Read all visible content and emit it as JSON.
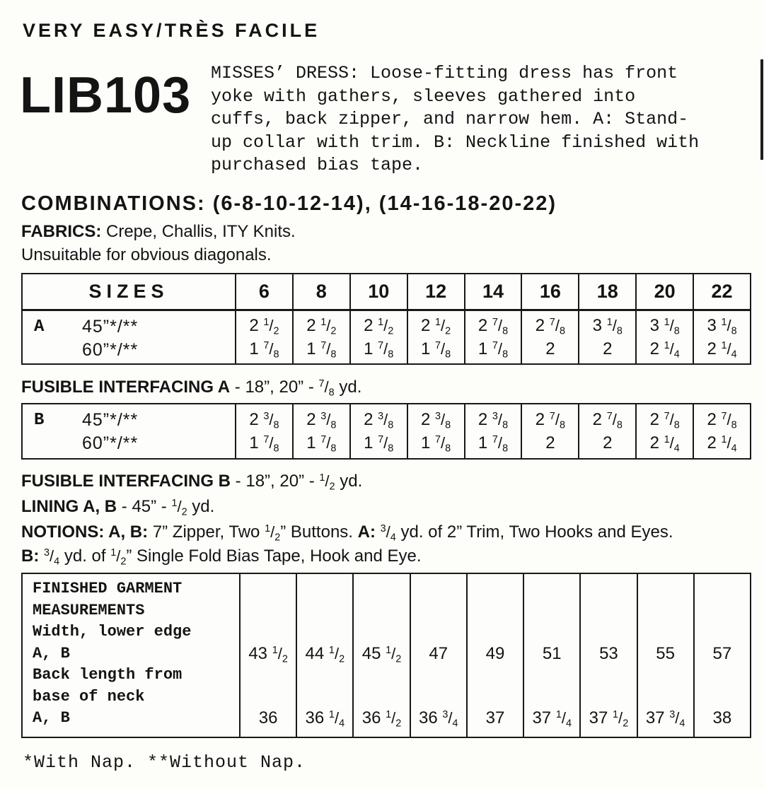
{
  "header": {
    "difficulty": "VERY EASY/TRÈS FACILE",
    "pattern_number": "LIB103",
    "description": "MISSES’ DRESS: Loose-fitting dress has front\nyoke with gathers, sleeves gathered into\ncuffs, back zipper, and narrow hem. A: Stand-\nup collar with trim. B: Neckline finished with\npurchased bias tape.",
    "combinations": "COMBINATIONS: (6-8-10-12-14), (14-16-18-20-22)"
  },
  "notes": {
    "fabrics": [
      {
        "b": "FABRICS:"
      },
      {
        "t": " Crepe, Challis, ITY Knits."
      }
    ],
    "fabrics_note": "Unsuitable for obvious diagonals.",
    "interfacing_a": [
      {
        "b": "FUSIBLE INTERFACING A"
      },
      {
        "t": " - 18”, 20” - 7/8 yd."
      }
    ],
    "interfacing_b": [
      {
        "b": "FUSIBLE INTERFACING B"
      },
      {
        "t": " - 18”, 20” - 1/2 yd."
      }
    ],
    "lining": [
      {
        "b": "LINING A, B"
      },
      {
        "t": " - 45” - 1/2 yd."
      }
    ],
    "notions_line1": [
      {
        "b": "NOTIONS: A, B:"
      },
      {
        "t": " 7” Zipper, Two 1/2” Buttons. "
      },
      {
        "b": "A:"
      },
      {
        "t": " 3/4 yd. of 2” Trim, Two Hooks and Eyes."
      }
    ],
    "notions_line2": [
      {
        "b": "B:"
      },
      {
        "t": " 3/4 yd. of 1/2” Single Fold Bias Tape, Hook and Eye."
      }
    ],
    "footnote": "*With Nap. **Without Nap."
  },
  "sizes_table": {
    "title": "SIZES",
    "sizes": [
      "6",
      "8",
      "10",
      "12",
      "14",
      "16",
      "18",
      "20",
      "22"
    ],
    "view_a": {
      "label": "A",
      "width_45": "45”*/**",
      "width_60": "60”*/**",
      "yd45": [
        "2 1/2",
        "2 1/2",
        "2 1/2",
        "2 1/2",
        "2 7/8",
        "2 7/8",
        "3 1/8",
        "3 1/8",
        "3 1/8"
      ],
      "yd60": [
        "1 7/8",
        "1 7/8",
        "1 7/8",
        "1 7/8",
        "1 7/8",
        "2",
        "2",
        "2 1/4",
        "2 1/4"
      ]
    },
    "view_b": {
      "label": "B",
      "width_45": "45”*/**",
      "width_60": "60”*/**",
      "yd45": [
        "2 3/8",
        "2 3/8",
        "2 3/8",
        "2 3/8",
        "2 3/8",
        "2 7/8",
        "2 7/8",
        "2 7/8",
        "2 7/8"
      ],
      "yd60": [
        "1 7/8",
        "1 7/8",
        "1 7/8",
        "1 7/8",
        "1 7/8",
        "2",
        "2",
        "2 1/4",
        "2 1/4"
      ]
    }
  },
  "finished_table": {
    "label": "FINISHED GARMENT\nMEASUREMENTS\nWidth, lower edge\nA, B\nBack length from\nbase of neck\nA, B",
    "width_lower_edge": [
      "43 1/2",
      "44 1/2",
      "45 1/2",
      "47",
      "49",
      "51",
      "53",
      "55",
      "57"
    ],
    "back_length": [
      "36",
      "36 1/4",
      "36 1/2",
      "36 3/4",
      "37",
      "37 1/4",
      "37 1/2",
      "37 3/4",
      "38"
    ]
  }
}
